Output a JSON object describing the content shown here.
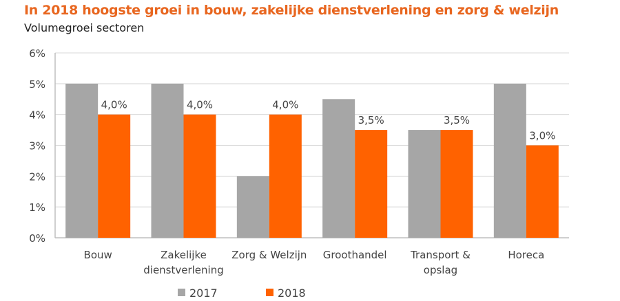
{
  "header": {
    "title": "In 2018 hoogste groei in bouw, zakelijke dienstverlening en zorg & welzijn",
    "subtitle": "Volumegroei sectoren"
  },
  "colors": {
    "s2017": "#a6a6a6",
    "s2018": "#ff6200",
    "grid": "#d9d9d9",
    "axis": "#bfbfbf"
  },
  "chart_data": {
    "type": "bar",
    "title": "In 2018 hoogste groei in bouw, zakelijke dienstverlening en zorg & welzijn",
    "subtitle": "Volumegroei sectoren",
    "xlabel": "",
    "ylabel": "",
    "ylim": [
      0,
      6
    ],
    "yticks": [
      0,
      1,
      2,
      3,
      4,
      5,
      6
    ],
    "ytick_labels": [
      "0%",
      "1%",
      "2%",
      "3%",
      "4%",
      "5%",
      "6%"
    ],
    "grid": true,
    "legend_position": "bottom",
    "categories": [
      [
        "Bouw"
      ],
      [
        "Zakelijke",
        "dienstverlening"
      ],
      [
        "Zorg & Welzijn"
      ],
      [
        "Groothandel"
      ],
      [
        "Transport &",
        "opslag"
      ],
      [
        "Horeca"
      ]
    ],
    "series": [
      {
        "name": "2017",
        "values": [
          5.0,
          5.0,
          2.0,
          4.5,
          3.5,
          5.0
        ],
        "labels": []
      },
      {
        "name": "2018",
        "values": [
          4.0,
          4.0,
          4.0,
          3.5,
          3.5,
          3.0
        ],
        "labels": [
          "4,0%",
          "4,0%",
          "4,0%",
          "3,5%",
          "3,5%",
          "3,0%"
        ]
      }
    ]
  }
}
